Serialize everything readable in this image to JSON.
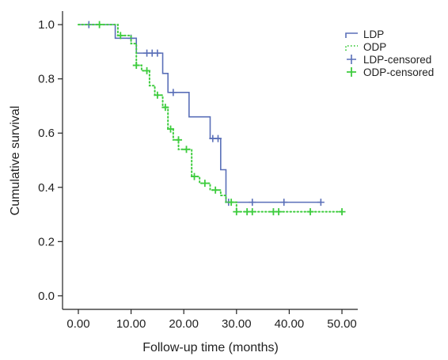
{
  "chart_data": {
    "type": "line",
    "xlabel": "Follow-up time (months)",
    "ylabel": "Cumulative survival",
    "xlim": [
      -3,
      53
    ],
    "ylim": [
      -0.05,
      1.05
    ],
    "x_ticks": [
      0,
      10,
      20,
      30,
      40,
      50
    ],
    "x_tick_labels": [
      "0.00",
      "10.00",
      "20.00",
      "30.00",
      "40.00",
      "50.00"
    ],
    "y_ticks": [
      0.0,
      0.2,
      0.4,
      0.6,
      0.8,
      1.0
    ],
    "y_tick_labels": [
      "0.0",
      "0.2",
      "0.4",
      "0.6",
      "0.8",
      "1.0"
    ],
    "grid": false,
    "legend_position": "top-right",
    "legend": [
      "LDP",
      "ODP",
      "LDP-censored",
      "ODP-censored"
    ],
    "colors": {
      "ldp": "#5a6fb8",
      "odp": "#3ecc3e",
      "axis": "#222222"
    },
    "series": [
      {
        "name": "LDP",
        "style": "solid step",
        "steps": [
          [
            0,
            1.0
          ],
          [
            7,
            0.95
          ],
          [
            11,
            0.895
          ],
          [
            16,
            0.82
          ],
          [
            17,
            0.75
          ],
          [
            21,
            0.66
          ],
          [
            25,
            0.58
          ],
          [
            27,
            0.465
          ],
          [
            28,
            0.345
          ],
          [
            46,
            0.345
          ]
        ],
        "censored": [
          [
            2,
            1.0
          ],
          [
            10,
            0.95
          ],
          [
            13,
            0.895
          ],
          [
            14,
            0.895
          ],
          [
            15,
            0.895
          ],
          [
            18,
            0.75
          ],
          [
            25.5,
            0.58
          ],
          [
            26.5,
            0.58
          ],
          [
            28.5,
            0.345
          ],
          [
            33,
            0.345
          ],
          [
            39,
            0.345
          ],
          [
            46,
            0.345
          ]
        ]
      },
      {
        "name": "ODP",
        "style": "dotted step",
        "steps": [
          [
            0,
            1.0
          ],
          [
            7.5,
            0.96
          ],
          [
            10,
            0.93
          ],
          [
            11,
            0.85
          ],
          [
            12,
            0.83
          ],
          [
            13.5,
            0.775
          ],
          [
            14.5,
            0.74
          ],
          [
            16,
            0.695
          ],
          [
            17,
            0.615
          ],
          [
            18,
            0.575
          ],
          [
            19,
            0.54
          ],
          [
            21.5,
            0.44
          ],
          [
            23,
            0.415
          ],
          [
            25,
            0.39
          ],
          [
            27,
            0.37
          ],
          [
            28,
            0.345
          ],
          [
            30,
            0.31
          ],
          [
            50,
            0.31
          ]
        ],
        "censored": [
          [
            4,
            1.0
          ],
          [
            8,
            0.96
          ],
          [
            11,
            0.85
          ],
          [
            13,
            0.83
          ],
          [
            15,
            0.74
          ],
          [
            16.5,
            0.695
          ],
          [
            17.5,
            0.615
          ],
          [
            19,
            0.575
          ],
          [
            20.5,
            0.54
          ],
          [
            22,
            0.44
          ],
          [
            24,
            0.415
          ],
          [
            26,
            0.39
          ],
          [
            29,
            0.345
          ],
          [
            30,
            0.31
          ],
          [
            32,
            0.31
          ],
          [
            33,
            0.31
          ],
          [
            37,
            0.31
          ],
          [
            38,
            0.31
          ],
          [
            44,
            0.31
          ],
          [
            50,
            0.31
          ]
        ]
      }
    ]
  }
}
